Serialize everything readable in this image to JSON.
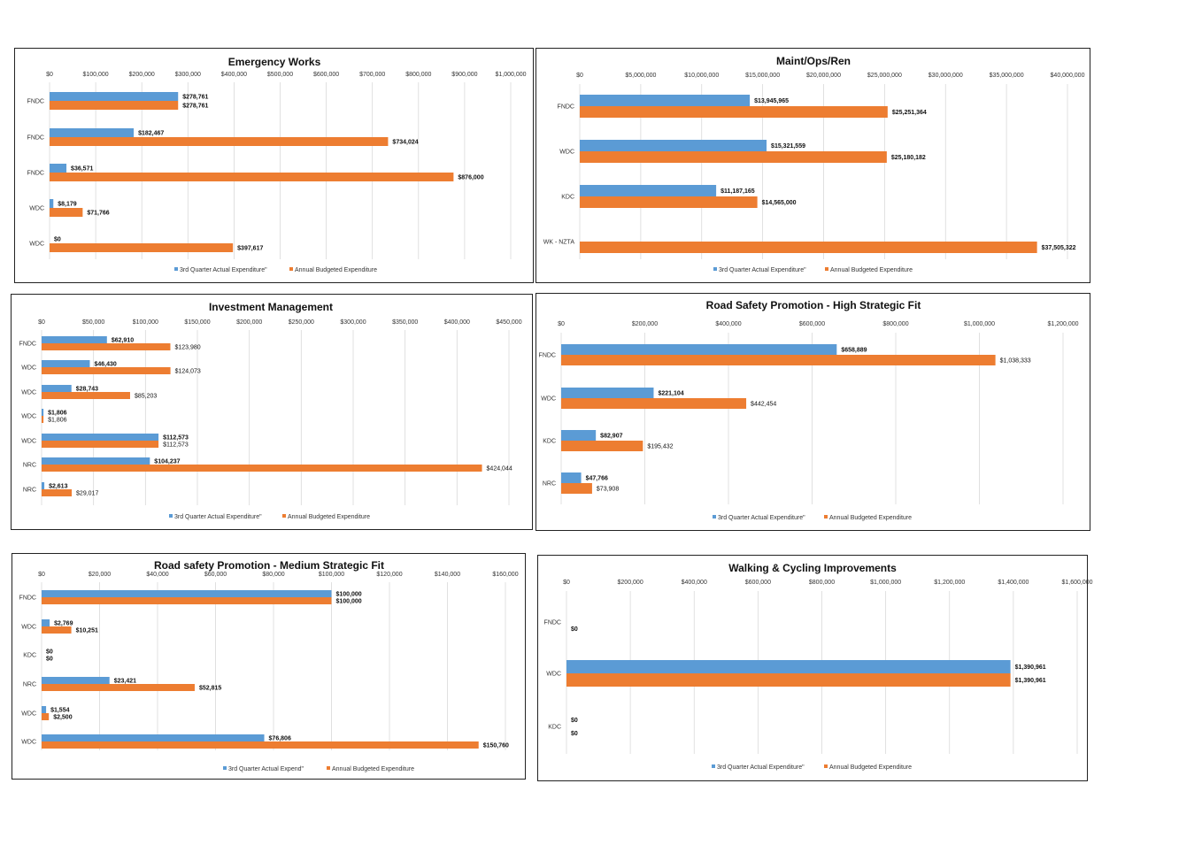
{
  "colors": {
    "actual": "#5b9bd5",
    "budget": "#ed7d31"
  },
  "chart_data": [
    {
      "type": "bar",
      "title": "Emergency Works",
      "categories": [
        "FNDC",
        "FNDC",
        "FNDC",
        "WDC",
        "WDC"
      ],
      "series": [
        {
          "name": "3rd Quarter Actual Expenditure\"",
          "values": [
            278761,
            182467,
            36571,
            8179,
            0
          ],
          "labels": [
            "$278,761",
            "$182,467",
            "$36,571",
            "$8,179",
            "$0"
          ]
        },
        {
          "name": "Annual Budgeted Expenditure",
          "values": [
            278761,
            734024,
            876000,
            71766,
            397617
          ],
          "labels": [
            "$278,761",
            "$734,024",
            "$876,000",
            "$71,766",
            "$397,617"
          ]
        }
      ],
      "xlim": [
        0,
        1000000
      ],
      "ticks": [
        "$0",
        "$100,000",
        "$200,000",
        "$300,000",
        "$400,000",
        "$500,000",
        "$600,000",
        "$700,000",
        "$800,000",
        "$900,000",
        "$1,000,000"
      ],
      "legend": "bottom"
    },
    {
      "type": "bar",
      "title": "Maint/Ops/Ren",
      "categories": [
        "FNDC",
        "WDC",
        "KDC",
        "WK - NZTA"
      ],
      "series": [
        {
          "name": "3rd Quarter Actual Expenditure\"",
          "values": [
            13945965,
            15321559,
            11187165,
            null
          ],
          "labels": [
            "$13,945,965",
            "$15,321,559",
            "$11,187,165",
            ""
          ]
        },
        {
          "name": "Annual Budgeted Expenditure",
          "values": [
            25251364,
            25180182,
            14565000,
            37505322
          ],
          "labels": [
            "$25,251,364",
            "$25,180,182",
            "$14,565,000",
            "$37,505,322"
          ]
        }
      ],
      "xlim": [
        0,
        40000000
      ],
      "ticks": [
        "$0",
        "$5,000,000",
        "$10,000,000",
        "$15,000,000",
        "$20,000,000",
        "$25,000,000",
        "$30,000,000",
        "$35,000,000",
        "$40,000,000"
      ],
      "legend": "bottom"
    },
    {
      "type": "bar",
      "title": "Investment Management",
      "categories": [
        "FNDC",
        "WDC",
        "WDC",
        "WDC",
        "WDC",
        "NRC",
        "NRC"
      ],
      "series": [
        {
          "name": "3rd Quarter Actual Expenditure\"",
          "values": [
            62910,
            46430,
            28743,
            1806,
            112573,
            104237,
            2613
          ],
          "labels": [
            "$62,910",
            "$46,430",
            "$28,743",
            "$1,806",
            "$112,573",
            "$104,237",
            "$2,613"
          ]
        },
        {
          "name": "Annual Budgeted Expenditure",
          "values": [
            123980,
            124073,
            85203,
            1806,
            112573,
            424044,
            29017
          ],
          "labels": [
            "$123,980",
            "$124,073",
            "$85,203",
            "$1,806",
            "$112,573",
            "$424,044",
            "$29,017"
          ]
        }
      ],
      "xlim": [
        0,
        450000
      ],
      "ticks": [
        "$0",
        "$50,000",
        "$100,000",
        "$150,000",
        "$200,000",
        "$250,000",
        "$300,000",
        "$350,000",
        "$400,000",
        "$450,000"
      ],
      "legend": "bottom"
    },
    {
      "type": "bar",
      "title": "Road Safety Promotion - High Strategic Fit",
      "categories": [
        "FNDC",
        "WDC",
        "KDC",
        "NRC"
      ],
      "series": [
        {
          "name": "3rd Quarter Actual Expenditure\"",
          "values": [
            658889,
            221104,
            82907,
            47766
          ],
          "labels": [
            "$658,889",
            "$221,104",
            "$82,907",
            "$47,766"
          ]
        },
        {
          "name": "Annual Budgeted Expenditure",
          "values": [
            1038333,
            442454,
            195432,
            73908
          ],
          "labels": [
            "$1,038,333",
            "$442,454",
            "$195,432",
            "$73,908"
          ]
        }
      ],
      "xlim": [
        0,
        1200000
      ],
      "ticks": [
        "$0",
        "$200,000",
        "$400,000",
        "$600,000",
        "$800,000",
        "$1,000,000",
        "$1,200,000"
      ],
      "legend": "bottom"
    },
    {
      "type": "bar",
      "title": "Road safety Promotion - Medium Strategic Fit",
      "categories": [
        "FNDC",
        "WDC",
        "KDC",
        "NRC",
        "WDC",
        "WDC"
      ],
      "series": [
        {
          "name": "3rd Quarter Actual Expend\"",
          "values": [
            100000,
            2769,
            0,
            23421,
            1554,
            76806
          ],
          "labels": [
            "$100,000",
            "$2,769",
            "$0",
            "$23,421",
            "$1,554",
            "$76,806"
          ]
        },
        {
          "name": "Annual Budgeted Expenditure",
          "values": [
            100000,
            10251,
            0,
            52815,
            2500,
            150760
          ],
          "labels": [
            "$100,000",
            "$10,251",
            "$0",
            "$52,815",
            "$2,500",
            "$150,760"
          ]
        }
      ],
      "xlim": [
        0,
        160000
      ],
      "ticks": [
        "$0",
        "$20,000",
        "$40,000",
        "$60,000",
        "$80,000",
        "$100,000",
        "$120,000",
        "$140,000",
        "$160,000"
      ],
      "legend": "bottom"
    },
    {
      "type": "bar",
      "title": "Walking & Cycling Improvements",
      "categories": [
        "FNDC",
        "WDC",
        "KDC"
      ],
      "series": [
        {
          "name": "3rd Quarter Actual Expenditure\"",
          "values": [
            null,
            1390961,
            0
          ],
          "labels": [
            "",
            "$1,390,961",
            "$0"
          ]
        },
        {
          "name": "Annual Budgeted Expenditure",
          "values": [
            0,
            1390961,
            0
          ],
          "labels": [
            "$0",
            "$1,390,961",
            "$0"
          ]
        }
      ],
      "xlim": [
        0,
        1600000
      ],
      "ticks": [
        "$0",
        "$200,000",
        "$400,000",
        "$600,000",
        "$800,000",
        "$1,000,000",
        "$1,200,000",
        "$1,400,000",
        "$1,600,000"
      ],
      "legend": "bottom"
    }
  ]
}
